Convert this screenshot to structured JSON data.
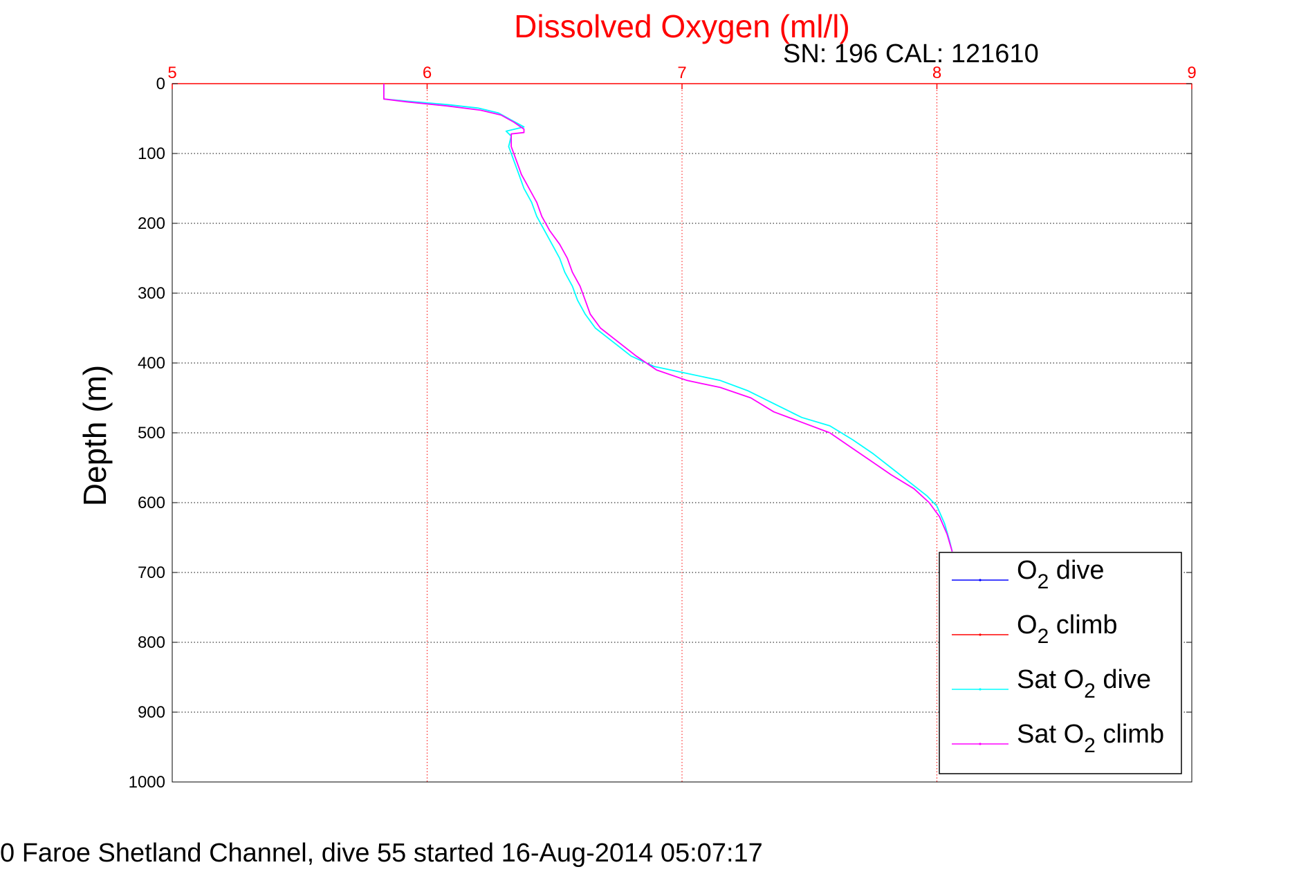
{
  "chart_data": {
    "type": "line",
    "title": "Dissolved Oxygen (ml/l)",
    "subtitle": "SN: 196  CAL: 121610",
    "ylabel": "Depth (m)",
    "footer": "0 Faroe Shetland Channel, dive 55 started 16-Aug-2014 05:07:17",
    "x_ticks": [
      "5",
      "6",
      "7",
      "8",
      "9"
    ],
    "y_ticks": [
      "0",
      "100",
      "200",
      "300",
      "400",
      "500",
      "600",
      "700",
      "800",
      "900",
      "1000"
    ],
    "xlim": [
      5,
      9
    ],
    "ylim": [
      0,
      1000
    ],
    "y_reversed": true,
    "x_axis_position": "top",
    "grid": true,
    "legend_placement": "bottom-right",
    "series": [
      {
        "name": "O₂ dive",
        "legend": {
          "pre": "O",
          "sub": "2",
          "post": " dive"
        },
        "color": "#0000ff",
        "points": []
      },
      {
        "name": "O₂ climb",
        "legend": {
          "pre": "O",
          "sub": "2",
          "post": " climb"
        },
        "color": "#ff0000",
        "points": []
      },
      {
        "name": "Sat O₂ dive",
        "legend": {
          "pre": "Sat O",
          "sub": "2",
          "post": " dive"
        },
        "color": "#00ffff",
        "points": [
          [
            5.83,
            0
          ],
          [
            5.83,
            10
          ],
          [
            5.83,
            22
          ],
          [
            5.92,
            25
          ],
          [
            6.08,
            30
          ],
          [
            6.2,
            35
          ],
          [
            6.28,
            42
          ],
          [
            6.33,
            52
          ],
          [
            6.36,
            58
          ],
          [
            6.38,
            62
          ],
          [
            6.31,
            68
          ],
          [
            6.33,
            75
          ],
          [
            6.32,
            90
          ],
          [
            6.34,
            110
          ],
          [
            6.36,
            130
          ],
          [
            6.38,
            150
          ],
          [
            6.41,
            170
          ],
          [
            6.43,
            190
          ],
          [
            6.46,
            210
          ],
          [
            6.49,
            230
          ],
          [
            6.52,
            250
          ],
          [
            6.54,
            270
          ],
          [
            6.57,
            290
          ],
          [
            6.59,
            310
          ],
          [
            6.62,
            330
          ],
          [
            6.66,
            350
          ],
          [
            6.73,
            370
          ],
          [
            6.8,
            390
          ],
          [
            6.89,
            405
          ],
          [
            7.02,
            415
          ],
          [
            7.15,
            425
          ],
          [
            7.26,
            440
          ],
          [
            7.37,
            460
          ],
          [
            7.47,
            478
          ],
          [
            7.58,
            490
          ],
          [
            7.67,
            510
          ],
          [
            7.75,
            530
          ],
          [
            7.82,
            550
          ],
          [
            7.89,
            570
          ],
          [
            7.96,
            590
          ],
          [
            8.0,
            605
          ],
          [
            8.03,
            630
          ],
          [
            8.05,
            655
          ],
          [
            8.06,
            670
          ]
        ]
      },
      {
        "name": "Sat O₂ climb",
        "legend": {
          "pre": "Sat O",
          "sub": "2",
          "post": " climb"
        },
        "color": "#ff00ff",
        "points": [
          [
            5.83,
            0
          ],
          [
            5.83,
            10
          ],
          [
            5.83,
            22
          ],
          [
            5.92,
            26
          ],
          [
            6.08,
            32
          ],
          [
            6.21,
            38
          ],
          [
            6.29,
            45
          ],
          [
            6.34,
            55
          ],
          [
            6.38,
            65
          ],
          [
            6.38,
            70
          ],
          [
            6.33,
            72
          ],
          [
            6.33,
            90
          ],
          [
            6.35,
            110
          ],
          [
            6.37,
            130
          ],
          [
            6.4,
            150
          ],
          [
            6.43,
            170
          ],
          [
            6.45,
            190
          ],
          [
            6.48,
            210
          ],
          [
            6.52,
            230
          ],
          [
            6.55,
            250
          ],
          [
            6.57,
            270
          ],
          [
            6.6,
            290
          ],
          [
            6.62,
            310
          ],
          [
            6.64,
            330
          ],
          [
            6.68,
            350
          ],
          [
            6.75,
            370
          ],
          [
            6.82,
            390
          ],
          [
            6.9,
            410
          ],
          [
            7.02,
            425
          ],
          [
            7.15,
            435
          ],
          [
            7.27,
            450
          ],
          [
            7.36,
            470
          ],
          [
            7.47,
            485
          ],
          [
            7.58,
            500
          ],
          [
            7.66,
            520
          ],
          [
            7.74,
            540
          ],
          [
            7.82,
            560
          ],
          [
            7.91,
            580
          ],
          [
            7.97,
            600
          ],
          [
            8.01,
            620
          ],
          [
            8.04,
            645
          ],
          [
            8.06,
            670
          ]
        ]
      }
    ]
  }
}
